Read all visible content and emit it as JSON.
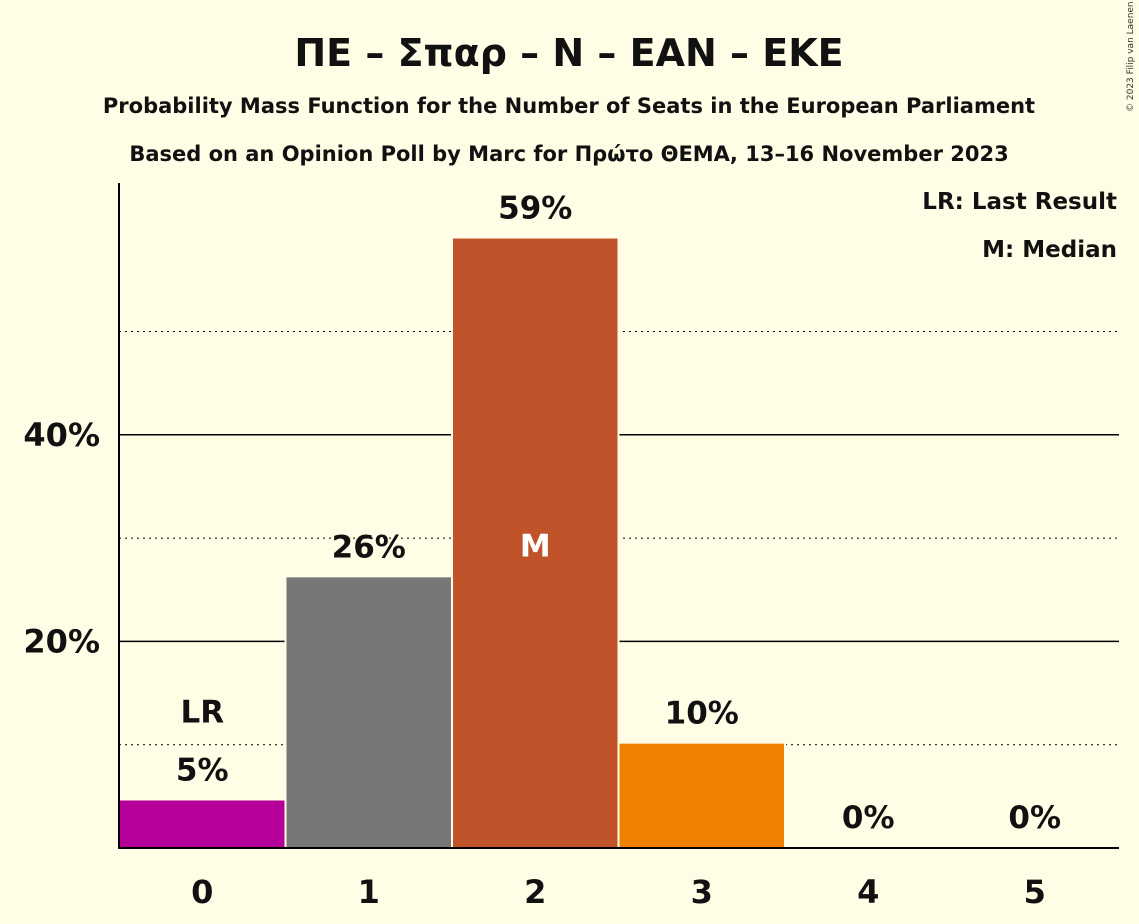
{
  "title": "ΠΕ – Σπαρ – Ν – ΕΑΝ – ΕΚΕ",
  "subtitle": "Probability Mass Function for the Number of Seats in the European Parliament",
  "subtitle2": "Based on an Opinion Poll by Marc for Πρώτο ΘΕΜΑ, 13–16 November 2023",
  "copyright": "© 2023 Filip van Laenen",
  "legend": {
    "lr": "LR: Last Result",
    "m": "M: Median"
  },
  "chart_data": {
    "type": "bar",
    "categories": [
      "0",
      "1",
      "2",
      "3",
      "4",
      "5"
    ],
    "values": [
      4.6,
      26.2,
      59,
      10.1,
      0,
      0
    ],
    "value_labels": [
      "5%",
      "26%",
      "59%",
      "10%",
      "0%",
      "0%"
    ],
    "colors": [
      "#B5009A",
      "#777777",
      "#C0532A",
      "#F08000",
      "#B5009A",
      "#B5009A"
    ],
    "markers": [
      {
        "category": "0",
        "text": "LR"
      },
      {
        "category": "2",
        "text": "M"
      }
    ],
    "ylim": [
      0,
      64
    ],
    "yticks_major": [
      20,
      40
    ],
    "ytick_labels": [
      "20%",
      "40%"
    ],
    "yticks_minor": [
      10,
      30,
      50
    ],
    "grid": true
  }
}
